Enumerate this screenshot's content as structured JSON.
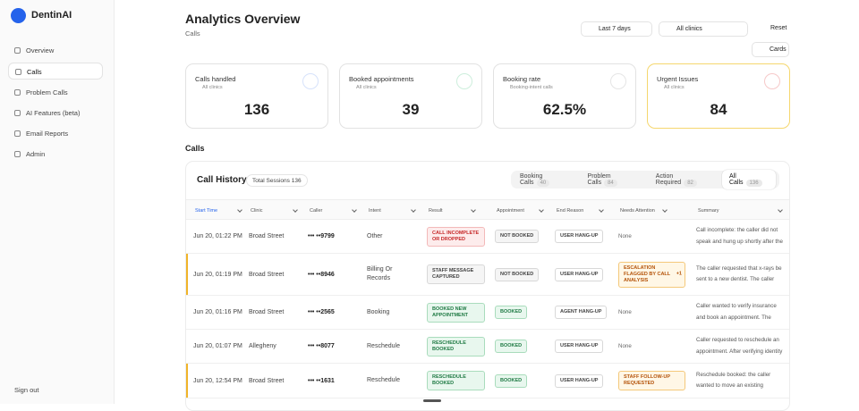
{
  "sidebar": {
    "brand": "DentinAI",
    "nav": [
      "Overview",
      "Calls",
      "Problem Calls",
      "AI Features (beta)",
      "Email Reports",
      "Admin"
    ],
    "sign_out": "Sign out"
  },
  "header": {
    "title": "Analytics Overview",
    "subtitle": "Calls",
    "range": "Last 7 days",
    "clinics": "All clinics",
    "reset": "Reset",
    "view": "Cards"
  },
  "kpis": [
    {
      "label": "Calls handled",
      "sub": "All clinics",
      "value": 136
    },
    {
      "label": "Booked appointments",
      "sub": "All clinics",
      "value": 39
    },
    {
      "label": "Booking rate",
      "sub": "Booking-intent calls",
      "value": "62.5%"
    },
    {
      "label": "Urgent Issues",
      "sub": "All clinics",
      "value": 84
    }
  ],
  "section_title": "Calls",
  "history": {
    "title": "Call History",
    "total_label": "Total Sessions",
    "total": 136,
    "tabs": [
      {
        "label": "Booking Calls",
        "count": 40
      },
      {
        "label": "Problem Calls",
        "count": 84
      },
      {
        "label": "Action Required",
        "count": 82
      },
      {
        "label": "All Calls",
        "count": 136
      }
    ],
    "columns": [
      "Start Time",
      "Clinic",
      "Caller",
      "Intent",
      "Result",
      "Appointment",
      "End Reason",
      "Needs Attention",
      "Summary"
    ],
    "rows": [
      [
        "Jun 20, 01:22 PM",
        "Broad Street",
        "••• ••9799",
        "Other",
        "CALL INCOMPLETE OR DROPPED",
        "NOT BOOKED",
        "USER HANG-UP",
        "None",
        "Call incomplete: the caller did not speak and hung up shortly after the"
      ],
      [
        "Jun 20, 01:19 PM",
        "Broad Street",
        "••• ••8946",
        "Billing Or Records",
        "STAFF MESSAGE CAPTURED",
        "NOT BOOKED",
        "USER HANG-UP",
        {
          "label": "ESCALATION FLAGGED BY CALL ANALYSIS",
          "extra": "+1"
        },
        "The caller requested that x-rays be sent to a new dentist. The caller"
      ],
      [
        "Jun 20, 01:16 PM",
        "Broad Street",
        "••• ••2565",
        "Booking",
        "BOOKED NEW APPOINTMENT",
        "BOOKED",
        "AGENT HANG-UP",
        "None",
        "Caller wanted to verify insurance and book an appointment. The"
      ],
      [
        "Jun 20, 01:07 PM",
        "Allegheny",
        "••• ••8077",
        "Reschedule",
        "RESCHEDULE BOOKED",
        "BOOKED",
        "USER HANG-UP",
        "None",
        "Caller requested to reschedule an appointment. After verifying identity"
      ],
      [
        "Jun 20, 12:54 PM",
        "Broad Street",
        "••• ••1631",
        "Reschedule",
        "RESCHEDULE BOOKED",
        "BOOKED",
        "USER HANG-UP",
        {
          "label": "STAFF FOLLOW-UP REQUESTED"
        },
        "Reschedule booked: the caller wanted to move an existing"
      ]
    ]
  }
}
